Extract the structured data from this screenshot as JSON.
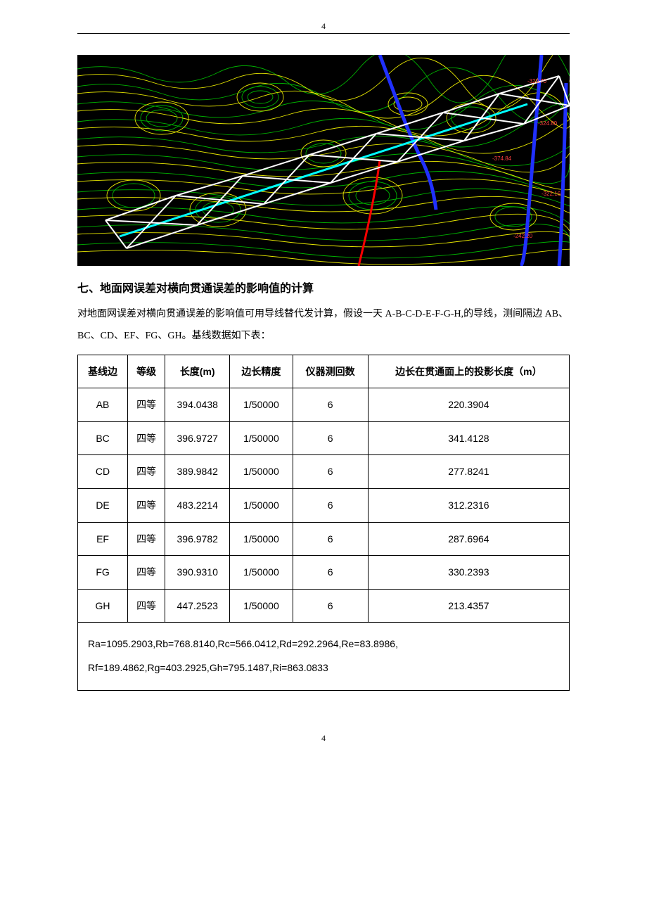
{
  "page_number_top": "4",
  "page_number_bottom": "4",
  "heading": "七、地面网误差对横向贯通误差的影响值的计算",
  "paragraph": "对地面网误差对横向贯通误差的影响值可用导线替代发计算，假设一天 A-B-C-D-E-F-G-H,的导线，测间隔边 AB、BC、CD、EF、FG、GH。基线数据如下表：",
  "table": {
    "columns": [
      "基线边",
      "等级",
      "长度(m)",
      "边长精度",
      "仪器测回数",
      "边长在贯通面上的投影长度（m）"
    ],
    "rows": [
      [
        "AB",
        "四等",
        "394.0438",
        "1/50000",
        "6",
        "220.3904"
      ],
      [
        "BC",
        "四等",
        "396.9727",
        "1/50000",
        "6",
        "341.4128"
      ],
      [
        "CD",
        "四等",
        "389.9842",
        "1/50000",
        "6",
        "277.8241"
      ],
      [
        "DE",
        "四等",
        "483.2214",
        "1/50000",
        "6",
        "312.2316"
      ],
      [
        "EF",
        "四等",
        "396.9782",
        "1/50000",
        "6",
        "287.6964"
      ],
      [
        "FG",
        "四等",
        "390.9310",
        "1/50000",
        "6",
        "330.2393"
      ],
      [
        "GH",
        "四等",
        "447.2523",
        "1/50000",
        "6",
        "213.4357"
      ]
    ],
    "footer_line1": "Ra=1095.2903,Rb=768.8140,Rc=566.0412,Rd=292.2964,Re=83.8986,",
    "footer_line2": "Rf=189.4862,Rg=403.2925,Gh=795.1487,Ri=863.0833"
  },
  "map": {
    "background": "#000000",
    "contour_stroke": "#e6e600",
    "contour_alt_stroke": "#00b000",
    "river_stroke": "#2030ff",
    "road_stroke": "#ff0000",
    "truss_stroke": "#ffffff",
    "centerline_stroke": "#00ffff",
    "label_color": "#ff4040"
  }
}
